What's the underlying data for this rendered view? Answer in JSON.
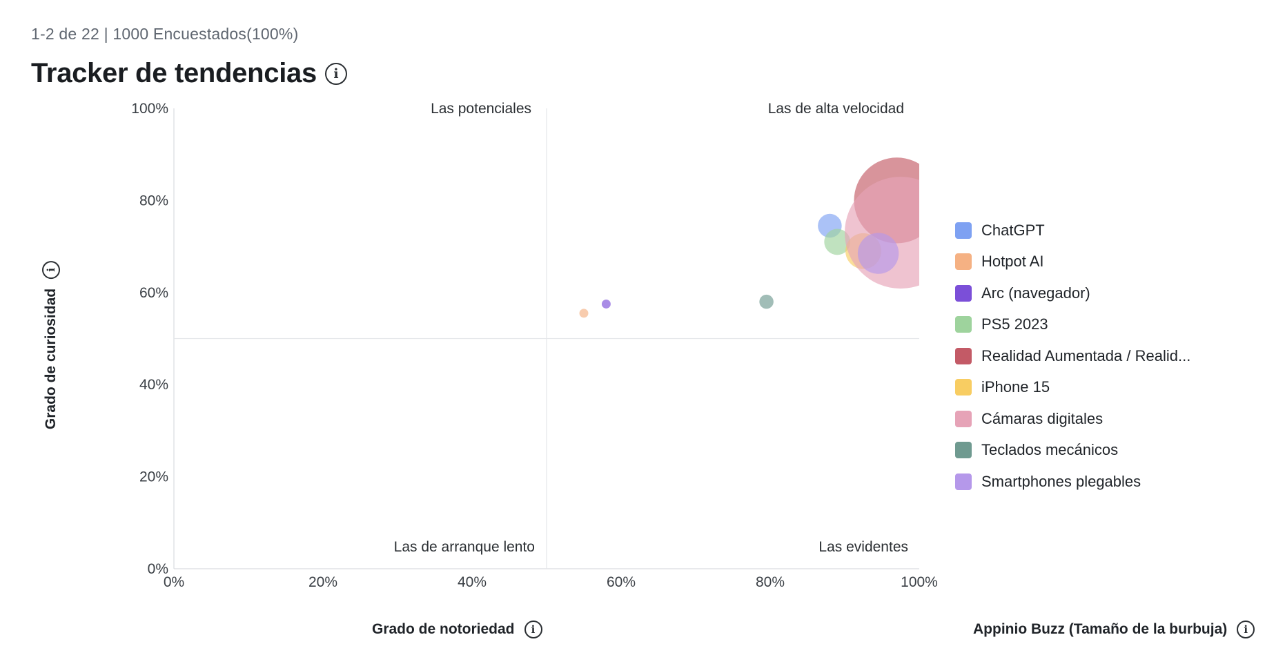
{
  "header": {
    "subtitle": "1-2 de 22 | 1000 Encuestados(100%)",
    "title": "Tracker de tendencias"
  },
  "axes": {
    "x_title": "Grado de notoriedad",
    "y_title": "Grado de curiosidad",
    "size_title": "Appinio Buzz (Tamaño de la burbuja)"
  },
  "icons": {
    "info": "info-icon",
    "info_glyph": "i"
  },
  "chart_data": {
    "type": "scatter",
    "xlabel": "Grado de notoriedad",
    "ylabel": "Grado de curiosidad",
    "size_label": "Appinio Buzz (Tamaño de la burbuja)",
    "xlim": [
      0,
      100
    ],
    "ylim": [
      0,
      100
    ],
    "x_ticks": [
      "0%",
      "20%",
      "40%",
      "60%",
      "80%",
      "100%"
    ],
    "y_ticks": [
      "0%",
      "20%",
      "40%",
      "60%",
      "80%",
      "100%"
    ],
    "quadrant_split": {
      "x": 50,
      "y": 50
    },
    "quadrant_labels": {
      "top_left": "Las potenciales",
      "top_right": "Las de alta velocidad",
      "bottom_left": "Las de arranque lento",
      "bottom_right": "Las evidentes"
    },
    "grid": false,
    "legend_position": "right",
    "series": [
      {
        "name": "ChatGPT",
        "x": 88,
        "y": 74.5,
        "size": 3.2,
        "color": "#7ea1f2"
      },
      {
        "name": "Hotpot AI",
        "x": 55,
        "y": 55.5,
        "size": 1.2,
        "color": "#f5b183"
      },
      {
        "name": "Arc (navegador)",
        "x": 58,
        "y": 57.5,
        "size": 1.2,
        "color": "#7b4fd8"
      },
      {
        "name": "PS5 2023",
        "x": 89,
        "y": 71,
        "size": 3.5,
        "color": "#9ed39d"
      },
      {
        "name": "Realidad Aumentada / Realid...",
        "x": 97,
        "y": 80,
        "size": 11.5,
        "color": "#c35a66"
      },
      {
        "name": "iPhone 15",
        "x": 92.5,
        "y": 69,
        "size": 4.8,
        "color": "#f8cd62"
      },
      {
        "name": "Cámaras digitales",
        "x": 97.5,
        "y": 73,
        "size": 15,
        "color": "#e6a3b7"
      },
      {
        "name": "Teclados mecánicos",
        "x": 79.5,
        "y": 58,
        "size": 1.9,
        "color": "#6f9a90"
      },
      {
        "name": "Smartphones plegables",
        "x": 94.5,
        "y": 68.5,
        "size": 5.5,
        "color": "#b598ea"
      }
    ]
  }
}
